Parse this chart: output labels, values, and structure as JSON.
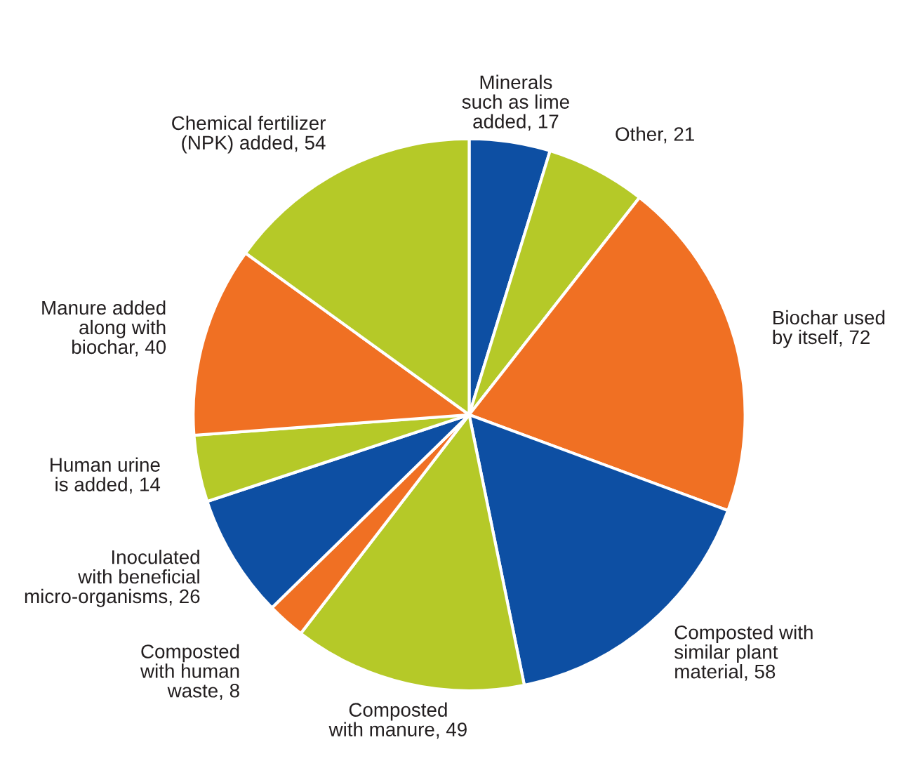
{
  "chart_data": {
    "type": "pie",
    "categories": [
      "Minerals\nsuch as lime\nadded, 17",
      "Other, 21",
      "Biochar used\nby itself, 72",
      "Composted with\nsimilar plant\nmaterial, 58",
      "Composted\nwith manure, 49",
      "Composted\nwith human\nwaste, 8",
      "Inoculated\nwith beneficial\nmicro-organisms, 26",
      "Human urine\nis added, 14",
      "Manure added\nalong with\nbiochar, 40",
      "Chemical fertilizer\n(NPK) added, 54"
    ],
    "values": [
      17,
      21,
      72,
      58,
      49,
      8,
      26,
      14,
      40,
      54
    ],
    "colors": [
      "#0d4fa3",
      "#b5c928",
      "#f07023",
      "#0d4fa3",
      "#b5c928",
      "#f07023",
      "#0d4fa3",
      "#b5c928",
      "#f07023",
      "#b5c928"
    ],
    "legend": false
  }
}
